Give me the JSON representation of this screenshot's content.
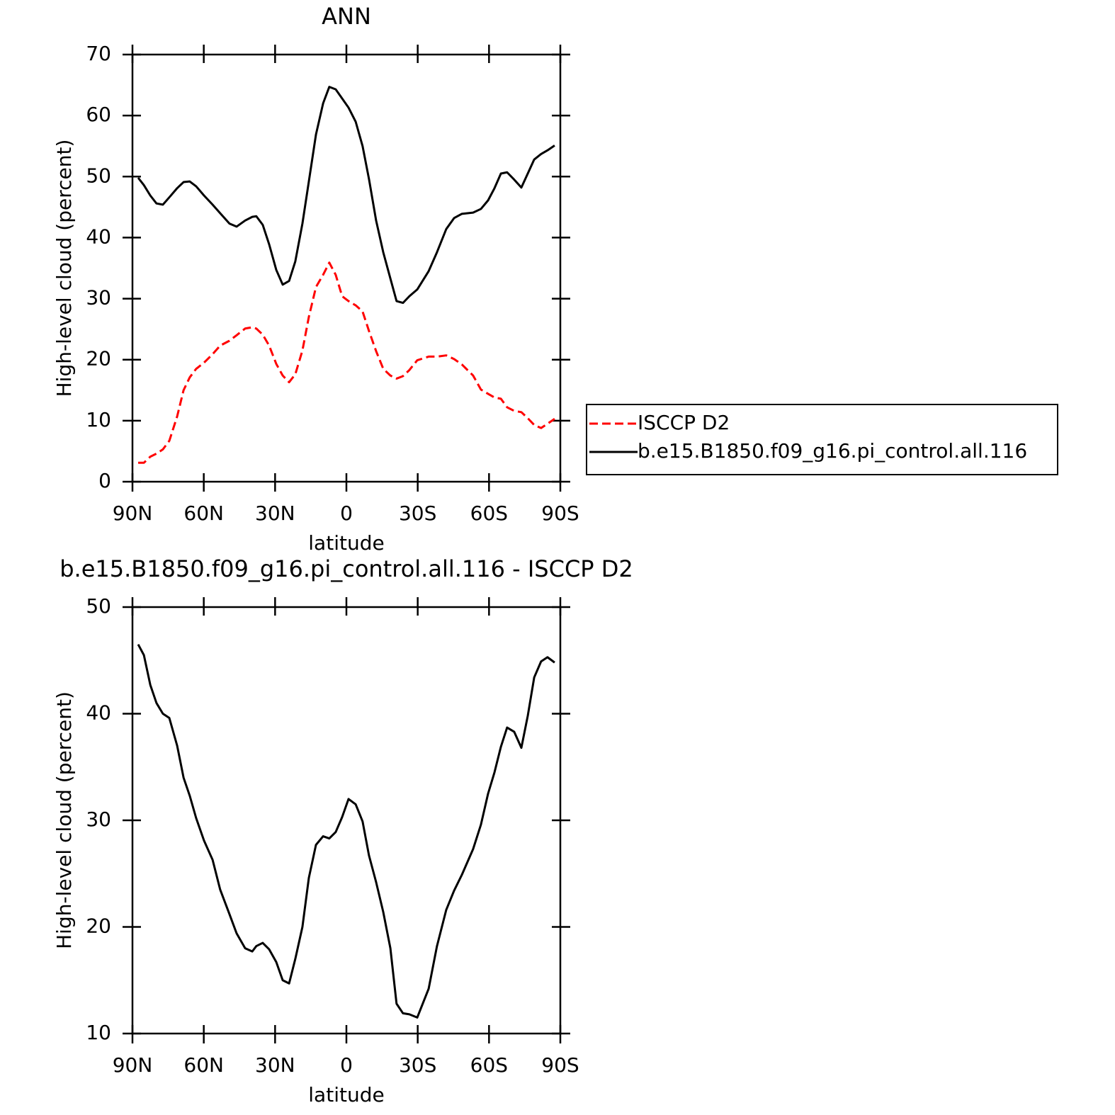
{
  "chart_data": [
    {
      "type": "line",
      "title": "ANN",
      "x_label": "latitude",
      "y_label": "High-level cloud (percent)",
      "x": [
        87.6,
        85.2,
        82.5,
        79.9,
        77.2,
        74.5,
        71.2,
        68.5,
        65.9,
        63.2,
        59.9,
        56.3,
        53.1,
        49.2,
        46.2,
        42.6,
        39.6,
        37.9,
        35.2,
        32.5,
        29.5,
        26.8,
        24.1,
        21.5,
        18.5,
        15.8,
        12.8,
        9.8,
        7.2,
        4.5,
        1.8,
        -0.9,
        -3.9,
        -6.8,
        -9.5,
        -12.5,
        -15.5,
        -18.5,
        -21.1,
        -23.8,
        -26.5,
        -29.8,
        -34.6,
        -38.1,
        -42.0,
        -45.3,
        -48.6,
        -53.3,
        -56.6,
        -59.6,
        -62.3,
        -65.0,
        -67.6,
        -70.6,
        -73.6,
        -76.3,
        -79.0,
        -81.9,
        -84.6,
        -87.6
      ],
      "series": [
        {
          "name": "ISCCP D2",
          "color": "#ff0000",
          "line_style": "dashed",
          "values": [
            3.1,
            3.1,
            4.1,
            4.6,
            5.3,
            6.7,
            10.7,
            15.0,
            17.1,
            18.5,
            19.5,
            20.9,
            22.3,
            23.1,
            24.0,
            25.1,
            25.3,
            25.1,
            24.1,
            22.3,
            19.3,
            17.4,
            16.3,
            17.6,
            21.5,
            27.0,
            31.9,
            33.9,
            35.9,
            33.9,
            30.4,
            29.6,
            28.9,
            27.9,
            24.7,
            21.4,
            18.5,
            17.4,
            16.9,
            17.3,
            18.3,
            19.9,
            20.5,
            20.5,
            20.7,
            20.1,
            19.2,
            17.4,
            15.1,
            14.4,
            13.8,
            13.6,
            12.2,
            11.6,
            11.4,
            10.4,
            9.3,
            8.8,
            9.5,
            10.3
          ]
        },
        {
          "name": "b.e15.B1850.f09_g16.pi_control.all.116",
          "color": "#000000",
          "line_style": "solid",
          "values": [
            49.8,
            48.6,
            46.9,
            45.6,
            45.4,
            46.6,
            48.1,
            49.1,
            49.2,
            48.4,
            46.9,
            45.4,
            44.0,
            42.3,
            41.8,
            42.8,
            43.4,
            43.5,
            42.1,
            38.9,
            34.7,
            32.3,
            32.9,
            36.1,
            42.3,
            49.2,
            56.9,
            62.0,
            64.7,
            64.3,
            62.8,
            61.3,
            59.0,
            55.0,
            49.6,
            42.8,
            37.6,
            33.3,
            29.6,
            29.3,
            30.4,
            31.5,
            34.5,
            37.6,
            41.4,
            43.2,
            43.9,
            44.1,
            44.7,
            46.1,
            48.1,
            50.5,
            50.7,
            49.5,
            48.2,
            50.5,
            52.8,
            53.7,
            54.3,
            55.1
          ]
        }
      ],
      "xlim": [
        90,
        -90
      ],
      "xticks": [
        {
          "value": 90,
          "label": "90N"
        },
        {
          "value": 60,
          "label": "60N"
        },
        {
          "value": 30,
          "label": "30N"
        },
        0,
        {
          "value": -30,
          "label": "30S"
        },
        {
          "value": -60,
          "label": "60S"
        },
        {
          "value": -90,
          "label": "90S"
        }
      ],
      "ylim": [
        0,
        70
      ],
      "yticks": [
        0,
        10,
        20,
        30,
        40,
        50,
        60,
        70
      ],
      "legend": "outside-right"
    },
    {
      "type": "line",
      "title": "b.e15.B1850.f09_g16.pi_control.all.116 - ISCCP D2",
      "x_label": "latitude",
      "y_label": "High-level cloud (percent)",
      "x": [
        87.6,
        85.2,
        82.5,
        79.9,
        77.2,
        74.5,
        71.2,
        68.5,
        65.9,
        63.2,
        59.9,
        56.3,
        53.1,
        49.2,
        46.2,
        42.6,
        39.6,
        37.9,
        35.2,
        32.5,
        29.5,
        26.8,
        24.1,
        21.5,
        18.5,
        15.8,
        12.8,
        9.8,
        7.2,
        4.5,
        1.8,
        -0.9,
        -3.9,
        -6.8,
        -9.5,
        -12.5,
        -15.5,
        -18.5,
        -21.1,
        -23.8,
        -26.5,
        -29.8,
        -34.6,
        -38.1,
        -42.0,
        -45.3,
        -48.6,
        -53.3,
        -56.6,
        -59.6,
        -62.3,
        -65.0,
        -67.6,
        -70.6,
        -73.6,
        -76.3,
        -79.0,
        -81.9,
        -84.6,
        -87.6
      ],
      "series": [
        {
          "color": "#000000",
          "line_style": "solid",
          "values": [
            46.5,
            45.5,
            42.7,
            41.0,
            40.0,
            39.6,
            37.0,
            34.0,
            32.3,
            30.2,
            28.1,
            26.3,
            23.5,
            21.2,
            19.4,
            18.0,
            17.7,
            18.2,
            18.5,
            17.9,
            16.7,
            15.0,
            14.7,
            17.0,
            20.0,
            24.6,
            27.7,
            28.5,
            28.3,
            28.9,
            30.3,
            32.0,
            31.5,
            29.9,
            26.7,
            24.2,
            21.4,
            18.0,
            12.8,
            11.9,
            11.8,
            11.5,
            14.2,
            18.2,
            21.6,
            23.4,
            24.9,
            27.3,
            29.6,
            32.5,
            34.5,
            36.9,
            38.7,
            38.3,
            36.8,
            39.8,
            43.4,
            44.9,
            45.3,
            44.8
          ]
        }
      ],
      "xlim": [
        90,
        -90
      ],
      "xticks": [
        {
          "value": 90,
          "label": "90N"
        },
        {
          "value": 60,
          "label": "60N"
        },
        {
          "value": 30,
          "label": "30N"
        },
        0,
        {
          "value": -30,
          "label": "30S"
        },
        {
          "value": -60,
          "label": "60S"
        },
        {
          "value": -90,
          "label": "90S"
        }
      ],
      "ylim": [
        10,
        50
      ],
      "yticks": [
        10,
        20,
        30,
        40,
        50
      ]
    }
  ]
}
